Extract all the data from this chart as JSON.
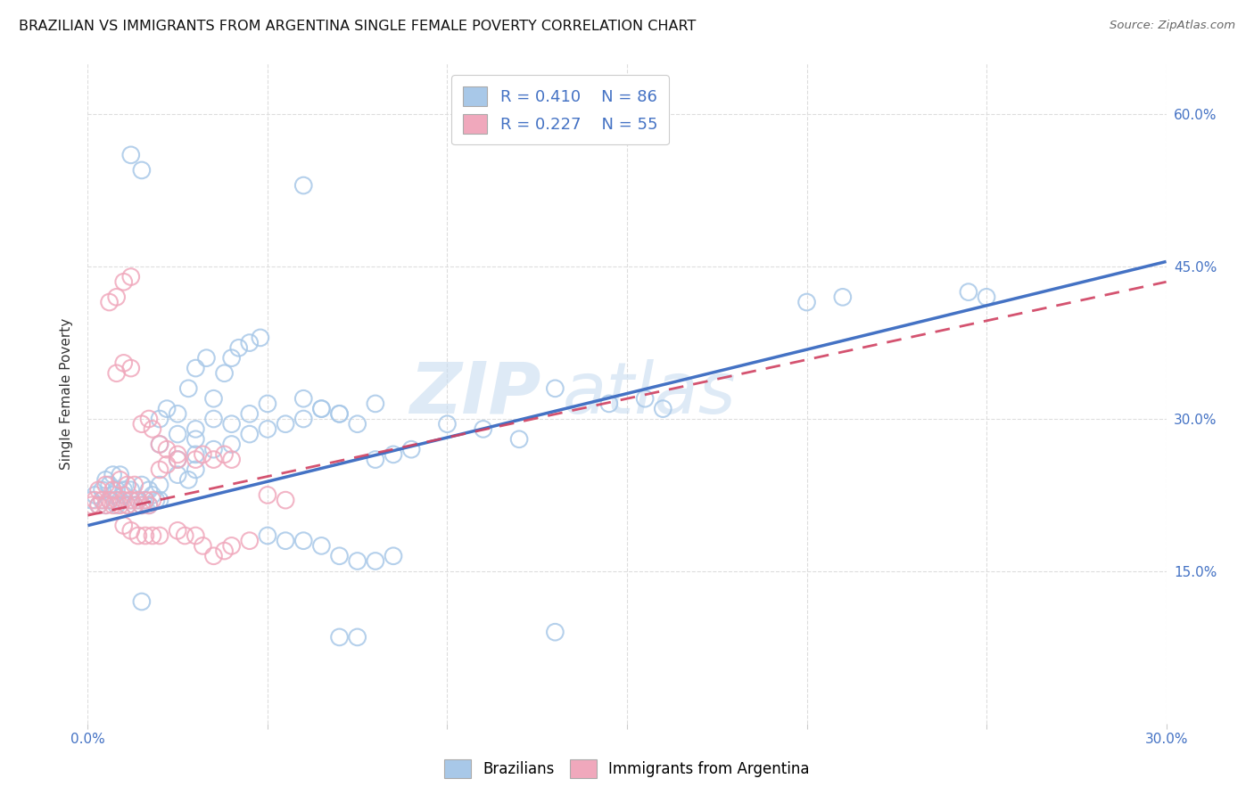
{
  "title": "BRAZILIAN VS IMMIGRANTS FROM ARGENTINA SINGLE FEMALE POVERTY CORRELATION CHART",
  "source": "Source: ZipAtlas.com",
  "ylabel": "Single Female Poverty",
  "ytick_labels": [
    "15.0%",
    "30.0%",
    "45.0%",
    "60.0%"
  ],
  "ytick_values": [
    0.15,
    0.3,
    0.45,
    0.6
  ],
  "xlim": [
    0.0,
    0.3
  ],
  "ylim": [
    0.0,
    0.65
  ],
  "color_blue": "#A8C8E8",
  "color_pink": "#F0A8BC",
  "color_blue_line": "#4472C4",
  "color_pink_line": "#D04060",
  "color_blue_text": "#4472C4",
  "watermark_zip": "ZIP",
  "watermark_atlas": "atlas",
  "blue_line_x0": 0.0,
  "blue_line_y0": 0.195,
  "blue_line_x1": 0.3,
  "blue_line_y1": 0.455,
  "pink_line_x0": 0.0,
  "pink_line_y0": 0.205,
  "pink_line_x1": 0.3,
  "pink_line_y1": 0.435,
  "blue_points": [
    [
      0.001,
      0.22
    ],
    [
      0.002,
      0.225
    ],
    [
      0.003,
      0.215
    ],
    [
      0.004,
      0.22
    ],
    [
      0.005,
      0.215
    ],
    [
      0.006,
      0.22
    ],
    [
      0.007,
      0.225
    ],
    [
      0.008,
      0.215
    ],
    [
      0.009,
      0.22
    ],
    [
      0.01,
      0.225
    ],
    [
      0.011,
      0.215
    ],
    [
      0.012,
      0.22
    ],
    [
      0.013,
      0.215
    ],
    [
      0.014,
      0.22
    ],
    [
      0.015,
      0.215
    ],
    [
      0.016,
      0.22
    ],
    [
      0.017,
      0.215
    ],
    [
      0.018,
      0.225
    ],
    [
      0.019,
      0.22
    ],
    [
      0.02,
      0.22
    ],
    [
      0.004,
      0.23
    ],
    [
      0.006,
      0.235
    ],
    [
      0.008,
      0.23
    ],
    [
      0.01,
      0.23
    ],
    [
      0.012,
      0.23
    ],
    [
      0.015,
      0.235
    ],
    [
      0.017,
      0.23
    ],
    [
      0.02,
      0.235
    ],
    [
      0.005,
      0.24
    ],
    [
      0.007,
      0.245
    ],
    [
      0.009,
      0.245
    ],
    [
      0.025,
      0.245
    ],
    [
      0.028,
      0.24
    ],
    [
      0.03,
      0.25
    ],
    [
      0.025,
      0.26
    ],
    [
      0.03,
      0.265
    ],
    [
      0.035,
      0.27
    ],
    [
      0.04,
      0.275
    ],
    [
      0.045,
      0.285
    ],
    [
      0.05,
      0.29
    ],
    [
      0.055,
      0.295
    ],
    [
      0.06,
      0.3
    ],
    [
      0.065,
      0.31
    ],
    [
      0.07,
      0.305
    ],
    [
      0.075,
      0.295
    ],
    [
      0.08,
      0.315
    ],
    [
      0.03,
      0.29
    ],
    [
      0.035,
      0.3
    ],
    [
      0.04,
      0.295
    ],
    [
      0.045,
      0.305
    ],
    [
      0.05,
      0.315
    ],
    [
      0.02,
      0.275
    ],
    [
      0.025,
      0.285
    ],
    [
      0.03,
      0.28
    ],
    [
      0.035,
      0.32
    ],
    [
      0.038,
      0.345
    ],
    [
      0.04,
      0.36
    ],
    [
      0.042,
      0.37
    ],
    [
      0.045,
      0.375
    ],
    [
      0.048,
      0.38
    ],
    [
      0.028,
      0.33
    ],
    [
      0.03,
      0.35
    ],
    [
      0.033,
      0.36
    ],
    [
      0.02,
      0.3
    ],
    [
      0.022,
      0.31
    ],
    [
      0.025,
      0.305
    ],
    [
      0.06,
      0.32
    ],
    [
      0.065,
      0.31
    ],
    [
      0.07,
      0.305
    ],
    [
      0.1,
      0.295
    ],
    [
      0.11,
      0.29
    ],
    [
      0.12,
      0.28
    ],
    [
      0.08,
      0.26
    ],
    [
      0.085,
      0.265
    ],
    [
      0.09,
      0.27
    ],
    [
      0.13,
      0.33
    ],
    [
      0.145,
      0.315
    ],
    [
      0.155,
      0.32
    ],
    [
      0.16,
      0.31
    ],
    [
      0.2,
      0.415
    ],
    [
      0.21,
      0.42
    ],
    [
      0.245,
      0.425
    ],
    [
      0.25,
      0.42
    ],
    [
      0.06,
      0.53
    ],
    [
      0.012,
      0.56
    ],
    [
      0.015,
      0.545
    ],
    [
      0.015,
      0.12
    ],
    [
      0.075,
      0.085
    ],
    [
      0.13,
      0.09
    ],
    [
      0.07,
      0.085
    ],
    [
      0.06,
      0.18
    ],
    [
      0.065,
      0.175
    ],
    [
      0.07,
      0.165
    ],
    [
      0.075,
      0.16
    ],
    [
      0.08,
      0.16
    ],
    [
      0.085,
      0.165
    ],
    [
      0.05,
      0.185
    ],
    [
      0.055,
      0.18
    ]
  ],
  "pink_points": [
    [
      0.001,
      0.215
    ],
    [
      0.002,
      0.22
    ],
    [
      0.003,
      0.215
    ],
    [
      0.004,
      0.22
    ],
    [
      0.005,
      0.215
    ],
    [
      0.006,
      0.22
    ],
    [
      0.007,
      0.215
    ],
    [
      0.008,
      0.22
    ],
    [
      0.009,
      0.215
    ],
    [
      0.01,
      0.22
    ],
    [
      0.011,
      0.215
    ],
    [
      0.012,
      0.22
    ],
    [
      0.013,
      0.215
    ],
    [
      0.014,
      0.22
    ],
    [
      0.015,
      0.215
    ],
    [
      0.016,
      0.22
    ],
    [
      0.017,
      0.215
    ],
    [
      0.018,
      0.22
    ],
    [
      0.003,
      0.23
    ],
    [
      0.005,
      0.235
    ],
    [
      0.007,
      0.23
    ],
    [
      0.009,
      0.24
    ],
    [
      0.011,
      0.235
    ],
    [
      0.013,
      0.235
    ],
    [
      0.02,
      0.25
    ],
    [
      0.022,
      0.255
    ],
    [
      0.025,
      0.26
    ],
    [
      0.008,
      0.345
    ],
    [
      0.01,
      0.355
    ],
    [
      0.012,
      0.35
    ],
    [
      0.006,
      0.415
    ],
    [
      0.008,
      0.42
    ],
    [
      0.01,
      0.435
    ],
    [
      0.012,
      0.44
    ],
    [
      0.015,
      0.295
    ],
    [
      0.017,
      0.3
    ],
    [
      0.018,
      0.29
    ],
    [
      0.02,
      0.275
    ],
    [
      0.022,
      0.27
    ],
    [
      0.025,
      0.265
    ],
    [
      0.03,
      0.26
    ],
    [
      0.032,
      0.265
    ],
    [
      0.035,
      0.26
    ],
    [
      0.038,
      0.265
    ],
    [
      0.04,
      0.26
    ],
    [
      0.025,
      0.19
    ],
    [
      0.027,
      0.185
    ],
    [
      0.03,
      0.185
    ],
    [
      0.032,
      0.175
    ],
    [
      0.035,
      0.165
    ],
    [
      0.038,
      0.17
    ],
    [
      0.04,
      0.175
    ],
    [
      0.045,
      0.18
    ],
    [
      0.01,
      0.195
    ],
    [
      0.012,
      0.19
    ],
    [
      0.014,
      0.185
    ],
    [
      0.016,
      0.185
    ],
    [
      0.018,
      0.185
    ],
    [
      0.02,
      0.185
    ],
    [
      0.05,
      0.225
    ],
    [
      0.055,
      0.22
    ]
  ]
}
